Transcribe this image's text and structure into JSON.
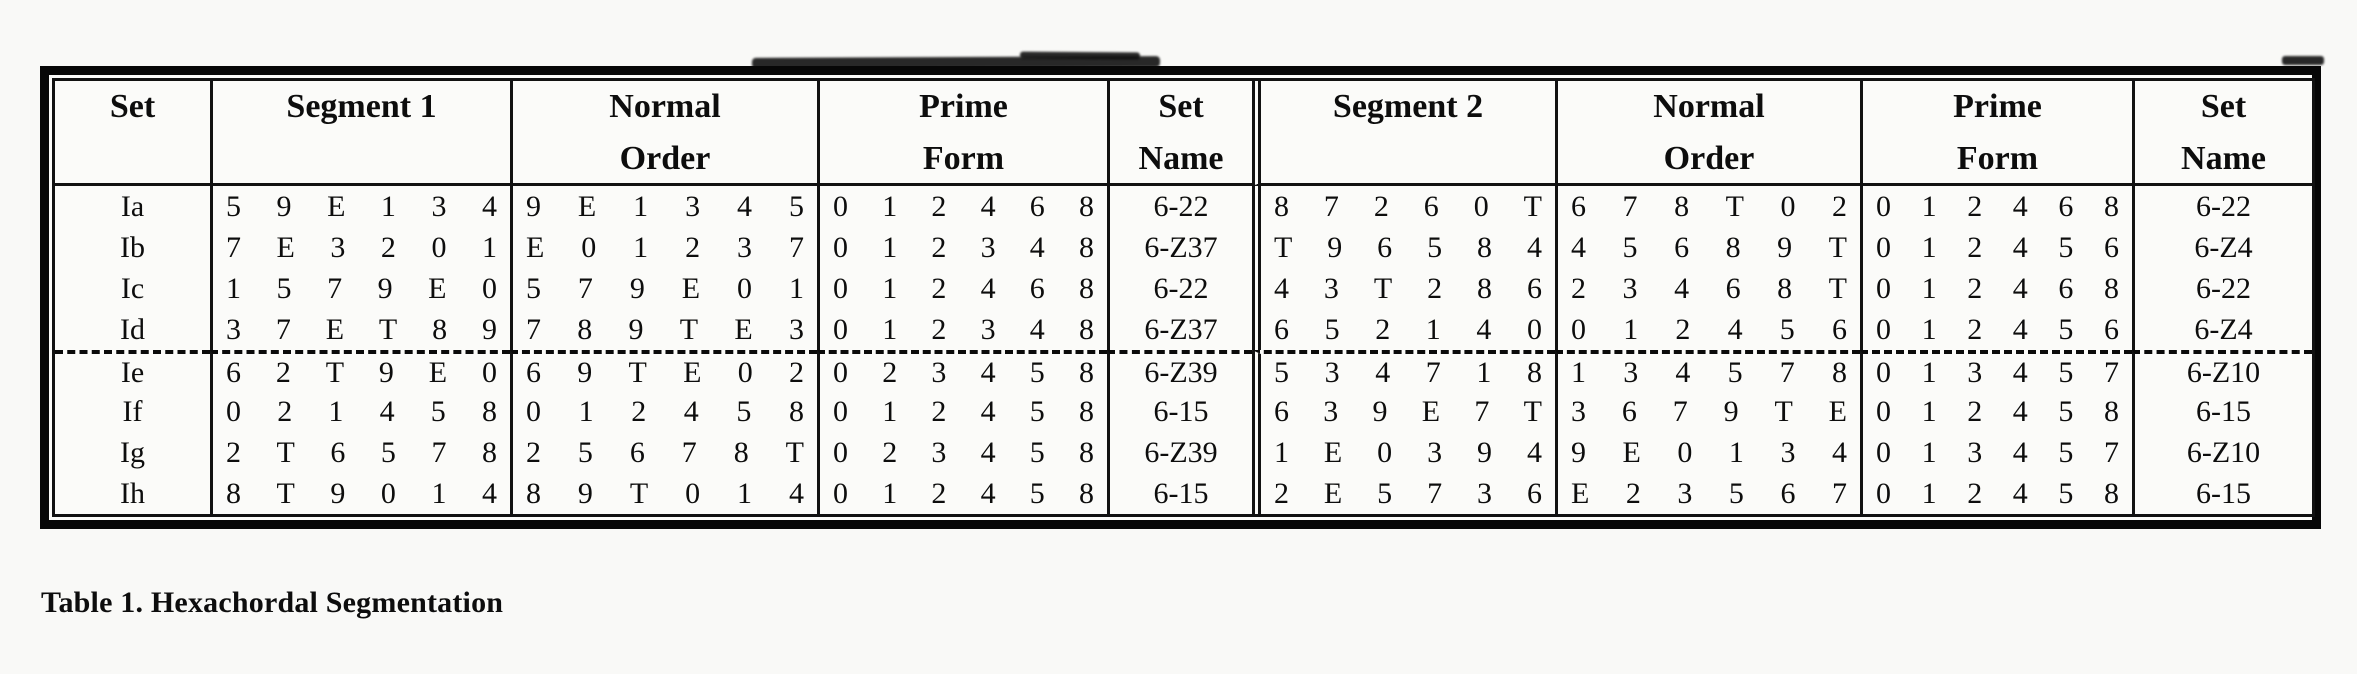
{
  "colors": {
    "ink": "#0d0d0d",
    "paper": "#f9f9f7"
  },
  "caption": "Table 1. Hexachordal Segmentation",
  "table": {
    "column_groups": [
      {
        "id": "set",
        "lines": [
          "Set"
        ]
      },
      {
        "id": "segment1",
        "lines": [
          "Segment 1"
        ]
      },
      {
        "id": "normal_order_1",
        "lines": [
          "Normal",
          "Order"
        ]
      },
      {
        "id": "prime_form_1",
        "lines": [
          "Prime",
          "Form"
        ]
      },
      {
        "id": "set_name_1",
        "lines": [
          "Set",
          "Name"
        ]
      },
      {
        "id": "segment2",
        "lines": [
          "Segment 2"
        ]
      },
      {
        "id": "normal_order_2",
        "lines": [
          "Normal",
          "Order"
        ]
      },
      {
        "id": "prime_form_2",
        "lines": [
          "Prime",
          "Form"
        ]
      },
      {
        "id": "set_name_2",
        "lines": [
          "Set",
          "Name"
        ]
      }
    ],
    "rows": [
      {
        "set": "Ia",
        "dashed_top": false,
        "segment1": [
          "5",
          "9",
          "E",
          "1",
          "3",
          "4"
        ],
        "normal_order_1": [
          "9",
          "E",
          "1",
          "3",
          "4",
          "5"
        ],
        "prime_form_1": [
          "0",
          "1",
          "2",
          "4",
          "6",
          "8"
        ],
        "set_name_1": "6-22",
        "segment2": [
          "8",
          "7",
          "2",
          "6",
          "0",
          "T"
        ],
        "normal_order_2": [
          "6",
          "7",
          "8",
          "T",
          "0",
          "2"
        ],
        "prime_form_2": [
          "0",
          "1",
          "2",
          "4",
          "6",
          "8"
        ],
        "set_name_2": "6-22"
      },
      {
        "set": "Ib",
        "dashed_top": false,
        "segment1": [
          "7",
          "E",
          "3",
          "2",
          "0",
          "1"
        ],
        "normal_order_1": [
          "E",
          "0",
          "1",
          "2",
          "3",
          "7"
        ],
        "prime_form_1": [
          "0",
          "1",
          "2",
          "3",
          "4",
          "8"
        ],
        "set_name_1": "6-Z37",
        "segment2": [
          "T",
          "9",
          "6",
          "5",
          "8",
          "4"
        ],
        "normal_order_2": [
          "4",
          "5",
          "6",
          "8",
          "9",
          "T"
        ],
        "prime_form_2": [
          "0",
          "1",
          "2",
          "4",
          "5",
          "6"
        ],
        "set_name_2": "6-Z4"
      },
      {
        "set": "Ic",
        "dashed_top": false,
        "segment1": [
          "1",
          "5",
          "7",
          "9",
          "E",
          "0"
        ],
        "normal_order_1": [
          "5",
          "7",
          "9",
          "E",
          "0",
          "1"
        ],
        "prime_form_1": [
          "0",
          "1",
          "2",
          "4",
          "6",
          "8"
        ],
        "set_name_1": "6-22",
        "segment2": [
          "4",
          "3",
          "T",
          "2",
          "8",
          "6"
        ],
        "normal_order_2": [
          "2",
          "3",
          "4",
          "6",
          "8",
          "T"
        ],
        "prime_form_2": [
          "0",
          "1",
          "2",
          "4",
          "6",
          "8"
        ],
        "set_name_2": "6-22"
      },
      {
        "set": "Id",
        "dashed_top": false,
        "segment1": [
          "3",
          "7",
          "E",
          "T",
          "8",
          "9"
        ],
        "normal_order_1": [
          "7",
          "8",
          "9",
          "T",
          "E",
          "3"
        ],
        "prime_form_1": [
          "0",
          "1",
          "2",
          "3",
          "4",
          "8"
        ],
        "set_name_1": "6-Z37",
        "segment2": [
          "6",
          "5",
          "2",
          "1",
          "4",
          "0"
        ],
        "normal_order_2": [
          "0",
          "1",
          "2",
          "4",
          "5",
          "6"
        ],
        "prime_form_2": [
          "0",
          "1",
          "2",
          "4",
          "5",
          "6"
        ],
        "set_name_2": "6-Z4"
      },
      {
        "set": "Ie",
        "dashed_top": true,
        "segment1": [
          "6",
          "2",
          "T",
          "9",
          "E",
          "0"
        ],
        "normal_order_1": [
          "6",
          "9",
          "T",
          "E",
          "0",
          "2"
        ],
        "prime_form_1": [
          "0",
          "2",
          "3",
          "4",
          "5",
          "8"
        ],
        "set_name_1": "6-Z39",
        "segment2": [
          "5",
          "3",
          "4",
          "7",
          "1",
          "8"
        ],
        "normal_order_2": [
          "1",
          "3",
          "4",
          "5",
          "7",
          "8"
        ],
        "prime_form_2": [
          "0",
          "1",
          "3",
          "4",
          "5",
          "7"
        ],
        "set_name_2": "6-Z10"
      },
      {
        "set": "If",
        "dashed_top": false,
        "segment1": [
          "0",
          "2",
          "1",
          "4",
          "5",
          "8"
        ],
        "normal_order_1": [
          "0",
          "1",
          "2",
          "4",
          "5",
          "8"
        ],
        "prime_form_1": [
          "0",
          "1",
          "2",
          "4",
          "5",
          "8"
        ],
        "set_name_1": "6-15",
        "segment2": [
          "6",
          "3",
          "9",
          "E",
          "7",
          "T"
        ],
        "normal_order_2": [
          "3",
          "6",
          "7",
          "9",
          "T",
          "E"
        ],
        "prime_form_2": [
          "0",
          "1",
          "2",
          "4",
          "5",
          "8"
        ],
        "set_name_2": "6-15"
      },
      {
        "set": "Ig",
        "dashed_top": false,
        "segment1": [
          "2",
          "T",
          "6",
          "5",
          "7",
          "8"
        ],
        "normal_order_1": [
          "2",
          "5",
          "6",
          "7",
          "8",
          "T"
        ],
        "prime_form_1": [
          "0",
          "2",
          "3",
          "4",
          "5",
          "8"
        ],
        "set_name_1": "6-Z39",
        "segment2": [
          "1",
          "E",
          "0",
          "3",
          "9",
          "4"
        ],
        "normal_order_2": [
          "9",
          "E",
          "0",
          "1",
          "3",
          "4"
        ],
        "prime_form_2": [
          "0",
          "1",
          "3",
          "4",
          "5",
          "7"
        ],
        "set_name_2": "6-Z10"
      },
      {
        "set": "Ih",
        "dashed_top": false,
        "segment1": [
          "8",
          "T",
          "9",
          "0",
          "1",
          "4"
        ],
        "normal_order_1": [
          "8",
          "9",
          "T",
          "0",
          "1",
          "4"
        ],
        "prime_form_1": [
          "0",
          "1",
          "2",
          "4",
          "5",
          "8"
        ],
        "set_name_1": "6-15",
        "segment2": [
          "2",
          "E",
          "5",
          "7",
          "3",
          "6"
        ],
        "normal_order_2": [
          "E",
          "2",
          "3",
          "5",
          "6",
          "7"
        ],
        "prime_form_2": [
          "0",
          "1",
          "2",
          "4",
          "5",
          "8"
        ],
        "set_name_2": "6-15"
      }
    ]
  }
}
